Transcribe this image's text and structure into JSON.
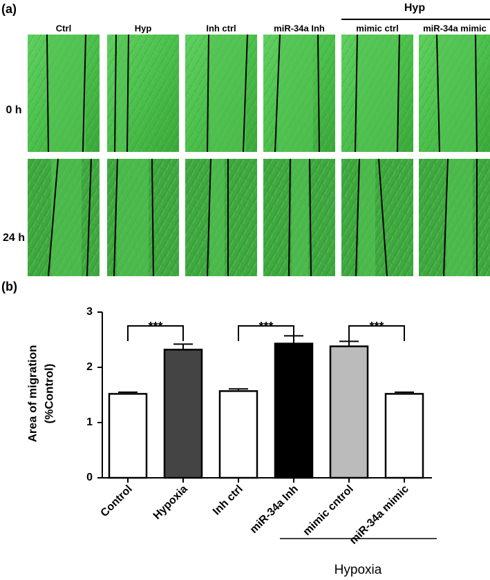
{
  "panel_a": {
    "label": "(a)",
    "columns": [
      "Ctrl",
      "Hyp",
      "Inh ctrl",
      "miR-34a Inh",
      "mimic ctrl",
      "miR-34a mimic"
    ],
    "group_label": "Hyp",
    "rows": [
      "0 h",
      "24 h"
    ]
  },
  "chart_data": {
    "type": "bar",
    "panel_label": "(b)",
    "y_label": [
      "Area of migration",
      "(%Control)"
    ],
    "categories": [
      "Control",
      "Hypoxia",
      "Inh ctrl",
      "miR-34a Inh",
      "mimic cntrol",
      "miR-34a mimic"
    ],
    "values": [
      1.52,
      2.32,
      1.57,
      2.43,
      2.38,
      1.52
    ],
    "errors": [
      0.03,
      0.1,
      0.04,
      0.14,
      0.09,
      0.03
    ],
    "colors": [
      "#ffffff",
      "#444444",
      "#ffffff",
      "#000000",
      "#bbbbbb",
      "#ffffff"
    ],
    "ylim": [
      0,
      3
    ],
    "yticks": [
      0,
      1,
      2,
      3
    ],
    "annotations": [
      "***",
      "***",
      "***"
    ],
    "group_label": "Hypoxia"
  }
}
